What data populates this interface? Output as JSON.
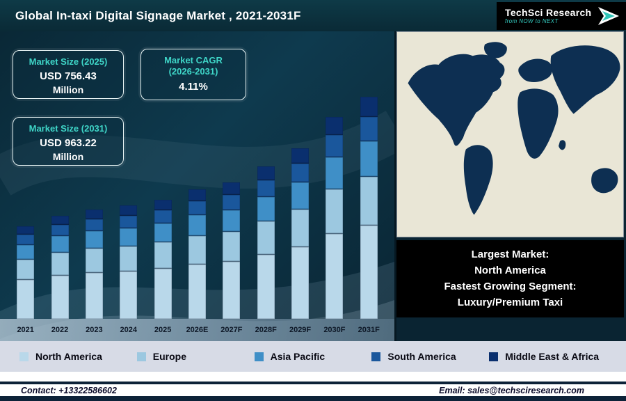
{
  "header": {
    "title": "Global In-taxi Digital Signage Market , 2021-2031F",
    "logo": {
      "brand": "TechSci Research",
      "tagline": "from NOW to NEXT"
    }
  },
  "info_boxes": {
    "size_2025": {
      "label": "Market Size (2025)",
      "value": "USD 756.43",
      "unit": "Million"
    },
    "cagr": {
      "label_line1": "Market CAGR",
      "label_line2": "(2026-2031)",
      "value": "4.11%"
    },
    "size_2031": {
      "label": "Market Size (2031)",
      "value": "USD 963.22",
      "unit": "Million"
    }
  },
  "chart_data": {
    "type": "bar",
    "stacked": true,
    "title": "Global In-taxi Digital Signage Market , 2021-2031F",
    "categories": [
      "2021",
      "2022",
      "2023",
      "2024",
      "2025",
      "2026E",
      "2027F",
      "2028F",
      "2029F",
      "2030F",
      "2031F"
    ],
    "series": [
      {
        "name": "North America",
        "color": "#b9d8ea",
        "values": [
          56,
          62,
          66,
          68,
          72,
          78,
          82,
          92,
          103,
          122,
          134
        ]
      },
      {
        "name": "Europe",
        "color": "#9cc8e0",
        "values": [
          29,
          33,
          35,
          36,
          38,
          41,
          43,
          48,
          54,
          64,
          70
        ]
      },
      {
        "name": "Asia Pacific",
        "color": "#3f8fc7",
        "values": [
          21,
          24,
          25,
          26,
          27,
          30,
          31,
          35,
          39,
          46,
          51
        ]
      },
      {
        "name": "South America",
        "color": "#1a579c",
        "values": [
          15,
          16,
          17,
          18,
          19,
          20,
          22,
          24,
          27,
          32,
          35
        ]
      },
      {
        "name": "Middle East & Africa",
        "color": "#0a2f6e",
        "values": [
          12,
          13,
          14,
          15,
          15,
          17,
          18,
          20,
          22,
          26,
          29
        ]
      }
    ],
    "legend_position": "bottom",
    "annotations": {
      "market_size_2025": "USD 756.43 Million",
      "market_size_2031": "USD 963.22 Million",
      "cagr_2026_2031": "4.11%"
    }
  },
  "map_panel": {
    "caption_lines": [
      "Largest Market:",
      "North America",
      "Fastest Growing Segment:",
      "Luxury/Premium Taxi"
    ]
  },
  "footer": {
    "contact": "Contact: +13322586602",
    "email": "Email: sales@techsciresearch.com"
  },
  "colors": {
    "header_bg": "#0b2f3c",
    "chart_bg": "#0d3040",
    "accent_teal": "#3fd6c8",
    "legend_bg": "#d7dbe6",
    "footer_navy": "#0d2238",
    "map_land": "#0d2f52",
    "map_sea": "#e9e6d6",
    "caption_bg": "#000000"
  }
}
